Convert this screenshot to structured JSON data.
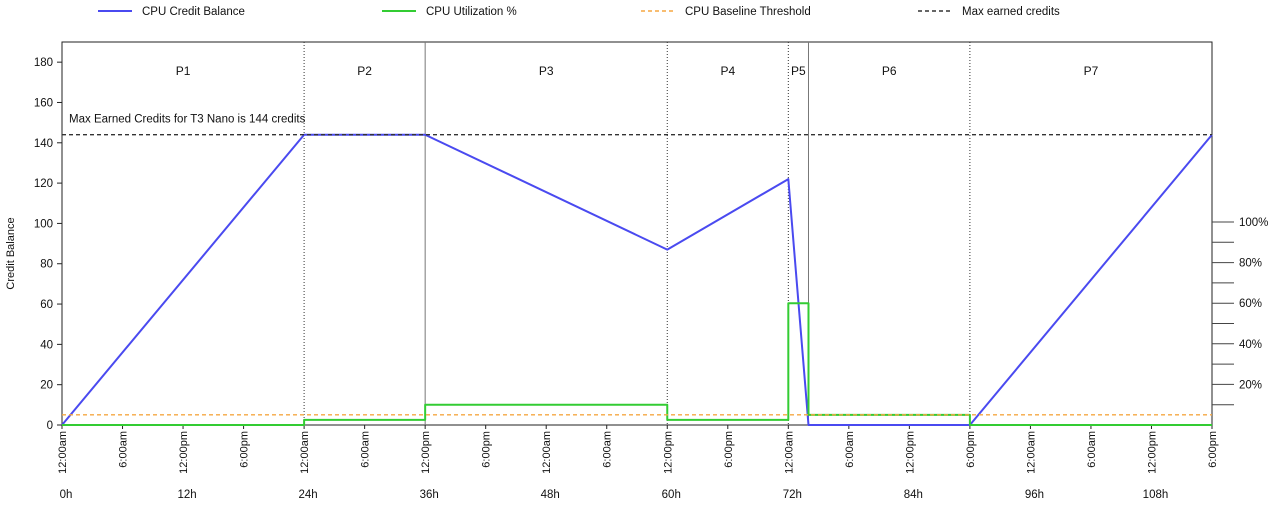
{
  "chart_data": {
    "type": "line",
    "title": "",
    "ylabel": "Credit Balance",
    "ylim": [
      0,
      190
    ],
    "yticks": [
      0,
      20,
      40,
      60,
      80,
      100,
      120,
      140,
      160,
      180
    ],
    "y2_tick_labels": [
      "20%",
      "40%",
      "60%",
      "80%",
      "100%"
    ],
    "y2_tick_values": [
      20,
      40,
      60,
      80,
      100
    ],
    "y2_minor_values": [
      10,
      30,
      50,
      70,
      90
    ],
    "xlim": [
      0,
      114
    ],
    "x_time_ticks": [
      {
        "x": 0,
        "label": "12:00am"
      },
      {
        "x": 6,
        "label": "6:00am"
      },
      {
        "x": 12,
        "label": "12:00pm"
      },
      {
        "x": 18,
        "label": "6:00pm"
      },
      {
        "x": 24,
        "label": "12:00am"
      },
      {
        "x": 30,
        "label": "6:00am"
      },
      {
        "x": 36,
        "label": "12:00pm"
      },
      {
        "x": 42,
        "label": "6:00pm"
      },
      {
        "x": 48,
        "label": "12:00am"
      },
      {
        "x": 54,
        "label": "6:00am"
      },
      {
        "x": 60,
        "label": "12:00pm"
      },
      {
        "x": 66,
        "label": "6:00pm"
      },
      {
        "x": 72,
        "label": "12:00am"
      },
      {
        "x": 78,
        "label": "6:00am"
      },
      {
        "x": 84,
        "label": "12:00pm"
      },
      {
        "x": 90,
        "label": "6:00pm"
      },
      {
        "x": 96,
        "label": "12:00am"
      },
      {
        "x": 102,
        "label": "6:00am"
      },
      {
        "x": 108,
        "label": "12:00pm"
      },
      {
        "x": 114,
        "label": "6:00pm"
      }
    ],
    "x_hour_ticks": [
      {
        "x": 0,
        "label": "0h"
      },
      {
        "x": 12,
        "label": "12h"
      },
      {
        "x": 24,
        "label": "24h"
      },
      {
        "x": 36,
        "label": "36h"
      },
      {
        "x": 48,
        "label": "48h"
      },
      {
        "x": 60,
        "label": "60h"
      },
      {
        "x": 72,
        "label": "72h"
      },
      {
        "x": 84,
        "label": "84h"
      },
      {
        "x": 96,
        "label": "96h"
      },
      {
        "x": 108,
        "label": "108h"
      }
    ],
    "periods": [
      {
        "name": "P1",
        "start": 0,
        "end": 24
      },
      {
        "name": "P2",
        "start": 24,
        "end": 36
      },
      {
        "name": "P3",
        "start": 36,
        "end": 60
      },
      {
        "name": "P4",
        "start": 60,
        "end": 72
      },
      {
        "name": "P5",
        "start": 72,
        "end": 74
      },
      {
        "name": "P6",
        "start": 74,
        "end": 90
      },
      {
        "name": "P7",
        "start": 90,
        "end": 114
      }
    ],
    "series": [
      {
        "name": "CPU Credit Balance",
        "color": "#4a4af0",
        "axis": "left",
        "points": [
          [
            0,
            0
          ],
          [
            24,
            144
          ],
          [
            36,
            144
          ],
          [
            60,
            87
          ],
          [
            72,
            122
          ],
          [
            74,
            0
          ],
          [
            90,
            0
          ],
          [
            114,
            144
          ]
        ]
      },
      {
        "name": "CPU Utilization %",
        "color": "#33cc33",
        "axis": "right",
        "points": [
          [
            0,
            0
          ],
          [
            24,
            0
          ],
          [
            24,
            2.5
          ],
          [
            36,
            2.5
          ],
          [
            36,
            10
          ],
          [
            60,
            10
          ],
          [
            60,
            2.5
          ],
          [
            72,
            2.5
          ],
          [
            72,
            60
          ],
          [
            74,
            60
          ],
          [
            74,
            5
          ],
          [
            90,
            5
          ],
          [
            90,
            0
          ],
          [
            114,
            0
          ]
        ]
      },
      {
        "name": "CPU Baseline Threshold",
        "color": "#f5a742",
        "axis": "right",
        "dash": "4,3",
        "points": [
          [
            0,
            5
          ],
          [
            114,
            5
          ]
        ]
      },
      {
        "name": "Max earned credits",
        "color": "#333333",
        "axis": "left",
        "dash": "4,3",
        "points": [
          [
            0,
            144
          ],
          [
            114,
            144
          ]
        ]
      }
    ],
    "annotations": [
      {
        "text": "Max Earned Credits for T3 Nano is 144 credits",
        "x": 0.5,
        "y": 152
      }
    ]
  }
}
